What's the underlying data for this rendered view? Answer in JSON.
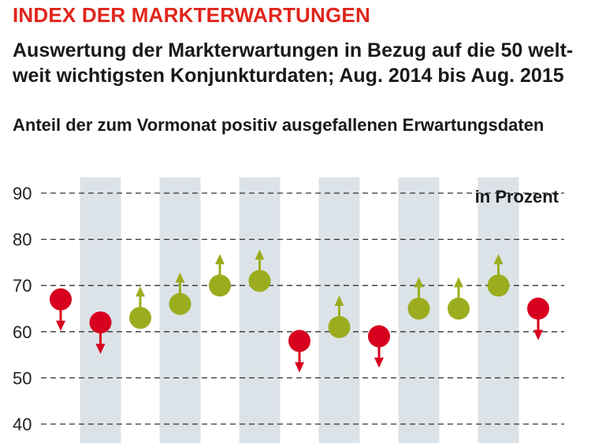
{
  "title": "INDEX DER MARKTERWARTUNGEN",
  "subtitle": "Auswertung der Markterwartungen in Bezug auf die 50 welt-weit wichtigsten Konjunkturdaten; Aug. 2014 bis Aug. 2015",
  "caption": "Anteil der zum Vormonat positiv ausgefallenen Erwartungsdaten",
  "colors": {
    "down": "#d7001e",
    "up": "#9bad1e",
    "band": "#dce3e8",
    "title": "#e0261c"
  },
  "chart_data": {
    "type": "scatter",
    "unit_label": "in Prozent",
    "ylim": [
      40,
      90
    ],
    "yticks": [
      40,
      50,
      60,
      70,
      80,
      90
    ],
    "grid": true,
    "values": [
      67,
      62,
      63,
      66,
      70,
      71,
      58,
      61,
      59,
      65,
      65,
      70,
      65
    ],
    "direction": [
      "down",
      "down",
      "up",
      "up",
      "up",
      "up",
      "down",
      "up",
      "down",
      "up",
      "up",
      "up",
      "down"
    ]
  }
}
